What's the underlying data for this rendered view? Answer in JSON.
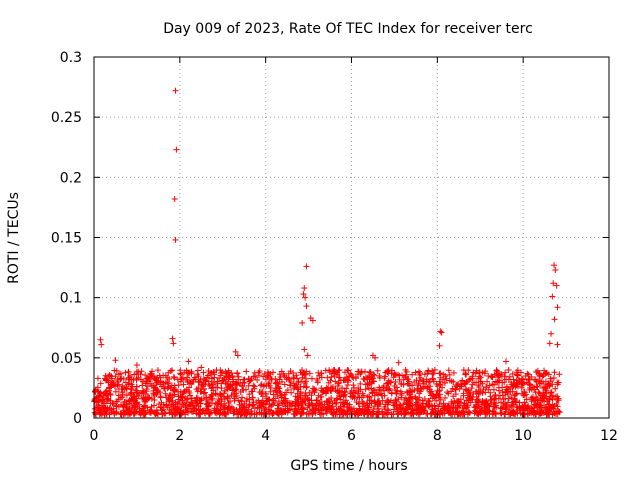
{
  "chart_data": {
    "type": "scatter",
    "title": "Day 009 of 2023, Rate Of TEC Index for receiver terc",
    "xlabel": "GPS time / hours",
    "ylabel": "ROTI / TECUs",
    "xlim": [
      0,
      12
    ],
    "ylim": [
      0,
      0.3
    ],
    "xticks": [
      0,
      2,
      4,
      6,
      8,
      10,
      12
    ],
    "yticks": [
      0,
      0.05,
      0.1,
      0.15,
      0.2,
      0.25,
      0.3
    ],
    "xtick_labels": [
      "0",
      "2",
      "4",
      "6",
      "8",
      "10",
      "12"
    ],
    "ytick_labels": [
      "0",
      "0.05",
      "0.1",
      "0.15",
      "0.2",
      "0.25",
      "0.3"
    ],
    "grid": true,
    "marker": "+",
    "color": "#ff0000",
    "series": [
      {
        "x": [
          1.9,
          1.92,
          1.88,
          1.9,
          1.83,
          1.85,
          0.15,
          0.17,
          4.9,
          4.88,
          4.92,
          4.95,
          4.95,
          5.05,
          5.1,
          4.85,
          4.9,
          4.98,
          8.07,
          8.1,
          8.05,
          10.72,
          10.75,
          10.7,
          10.78,
          10.68,
          10.8,
          10.73,
          10.65,
          10.62,
          10.8,
          3.3,
          3.35,
          6.5,
          6.55,
          9.6,
          2.2,
          2.5,
          7.1,
          0.5,
          1.0
        ],
        "y": [
          0.272,
          0.223,
          0.182,
          0.148,
          0.066,
          0.062,
          0.065,
          0.061,
          0.108,
          0.103,
          0.1,
          0.093,
          0.126,
          0.083,
          0.081,
          0.079,
          0.057,
          0.052,
          0.072,
          0.071,
          0.06,
          0.127,
          0.123,
          0.112,
          0.11,
          0.101,
          0.092,
          0.082,
          0.07,
          0.062,
          0.061,
          0.055,
          0.052,
          0.052,
          0.05,
          0.047,
          0.047,
          0.042,
          0.046,
          0.048,
          0.044
        ]
      }
    ],
    "background": {
      "x_range": [
        0.0,
        10.85
      ],
      "y_range": [
        0.003,
        0.04
      ]
    }
  }
}
